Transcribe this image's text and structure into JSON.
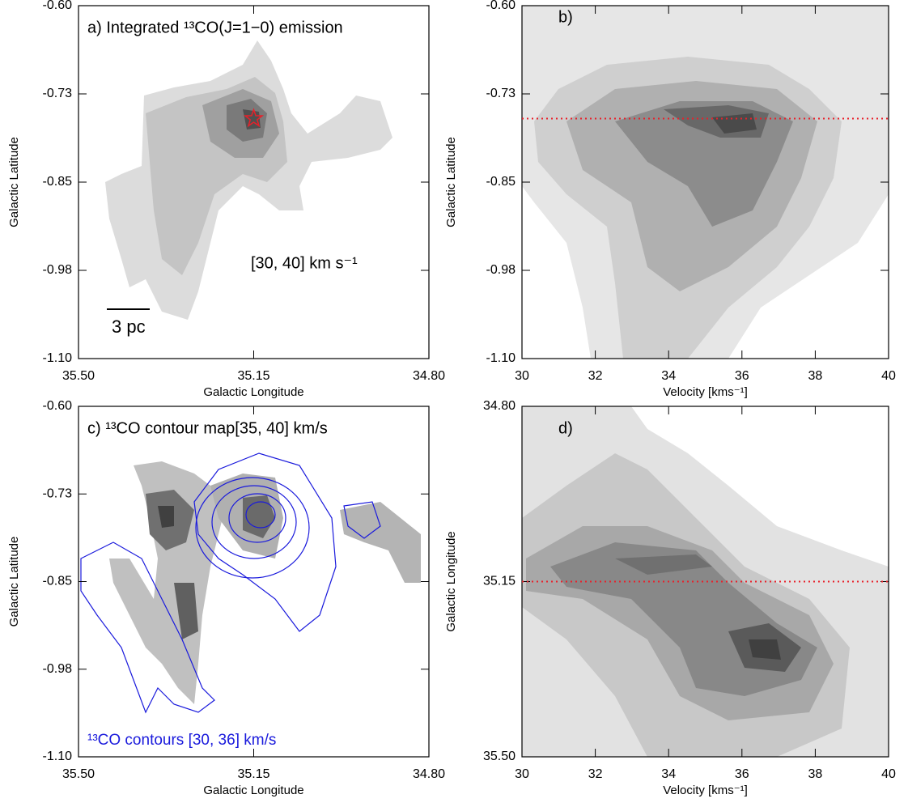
{
  "chart_data": [
    {
      "type": "contour",
      "title": "a) Integrated ¹³CO(J=1−0) emission",
      "x_label": "Galactic Longitude",
      "y_label": "Galactic Latitude",
      "xlim": [
        35.5,
        34.8
      ],
      "xticks": [
        {
          "value": 35.5,
          "label": "35.50"
        },
        {
          "value": 35.15,
          "label": "35.15"
        },
        {
          "value": 34.8,
          "label": "34.80"
        }
      ],
      "ylim": [
        -1.1,
        -0.6
      ],
      "yticks": [
        {
          "value": -1.1,
          "label": "-1.10"
        },
        {
          "value": -0.975,
          "label": "-0.98"
        },
        {
          "value": -0.85,
          "label": "-0.85"
        },
        {
          "value": -0.725,
          "label": "-0.73"
        },
        {
          "value": -0.6,
          "label": "-0.60"
        }
      ],
      "annotations": [
        "[30, 40] km s⁻¹",
        "3 pc"
      ],
      "marker_x": 35.15,
      "marker_y": -0.76,
      "marker_color": "#e8202a"
    },
    {
      "type": "contour",
      "title": "b)",
      "x_label": "Velocity [kms⁻¹]",
      "y_label": "Galactic Latitude",
      "xlim": [
        30,
        40
      ],
      "xticks": [
        30,
        32,
        34,
        36,
        38,
        40
      ],
      "ylim": [
        -1.1,
        -0.6
      ],
      "yticks": [
        {
          "value": -1.1,
          "label": "-1.10"
        },
        {
          "value": -0.975,
          "label": "-0.98"
        },
        {
          "value": -0.85,
          "label": "-0.85"
        },
        {
          "value": -0.725,
          "label": "-0.73"
        },
        {
          "value": -0.6,
          "label": "-0.60"
        }
      ],
      "hline": -0.76,
      "hline_color": "#e8202a"
    },
    {
      "type": "contour",
      "title": "c) ¹³CO contour map[35, 40] km/s",
      "x_label": "Galactic Longitude",
      "y_label": "Galactic Latitude",
      "xlim": [
        35.5,
        34.8
      ],
      "xticks": [
        {
          "value": 35.5,
          "label": "35.50"
        },
        {
          "value": 35.15,
          "label": "35.15"
        },
        {
          "value": 34.8,
          "label": "34.80"
        }
      ],
      "ylim": [
        -1.1,
        -0.6
      ],
      "yticks": [
        {
          "value": -1.1,
          "label": "-1.10"
        },
        {
          "value": -0.975,
          "label": "-0.98"
        },
        {
          "value": -0.85,
          "label": "-0.85"
        },
        {
          "value": -0.725,
          "label": "-0.73"
        },
        {
          "value": -0.6,
          "label": "-0.60"
        }
      ],
      "annotations": [
        "¹³CO contours [30, 36] km/s"
      ],
      "contour_color": "#1a1adc"
    },
    {
      "type": "contour",
      "title": "d)",
      "x_label": "Velocity [kms⁻¹]",
      "y_label": "Galactic Longitude",
      "xlim": [
        30,
        40
      ],
      "xticks": [
        30,
        32,
        34,
        36,
        38,
        40
      ],
      "ylim": [
        35.5,
        34.8
      ],
      "yticks": [
        {
          "value": 35.5,
          "label": "35.50"
        },
        {
          "value": 35.15,
          "label": "35.15"
        },
        {
          "value": 34.8,
          "label": "34.80"
        }
      ],
      "hline": 35.15,
      "hline_color": "#e8202a"
    }
  ]
}
